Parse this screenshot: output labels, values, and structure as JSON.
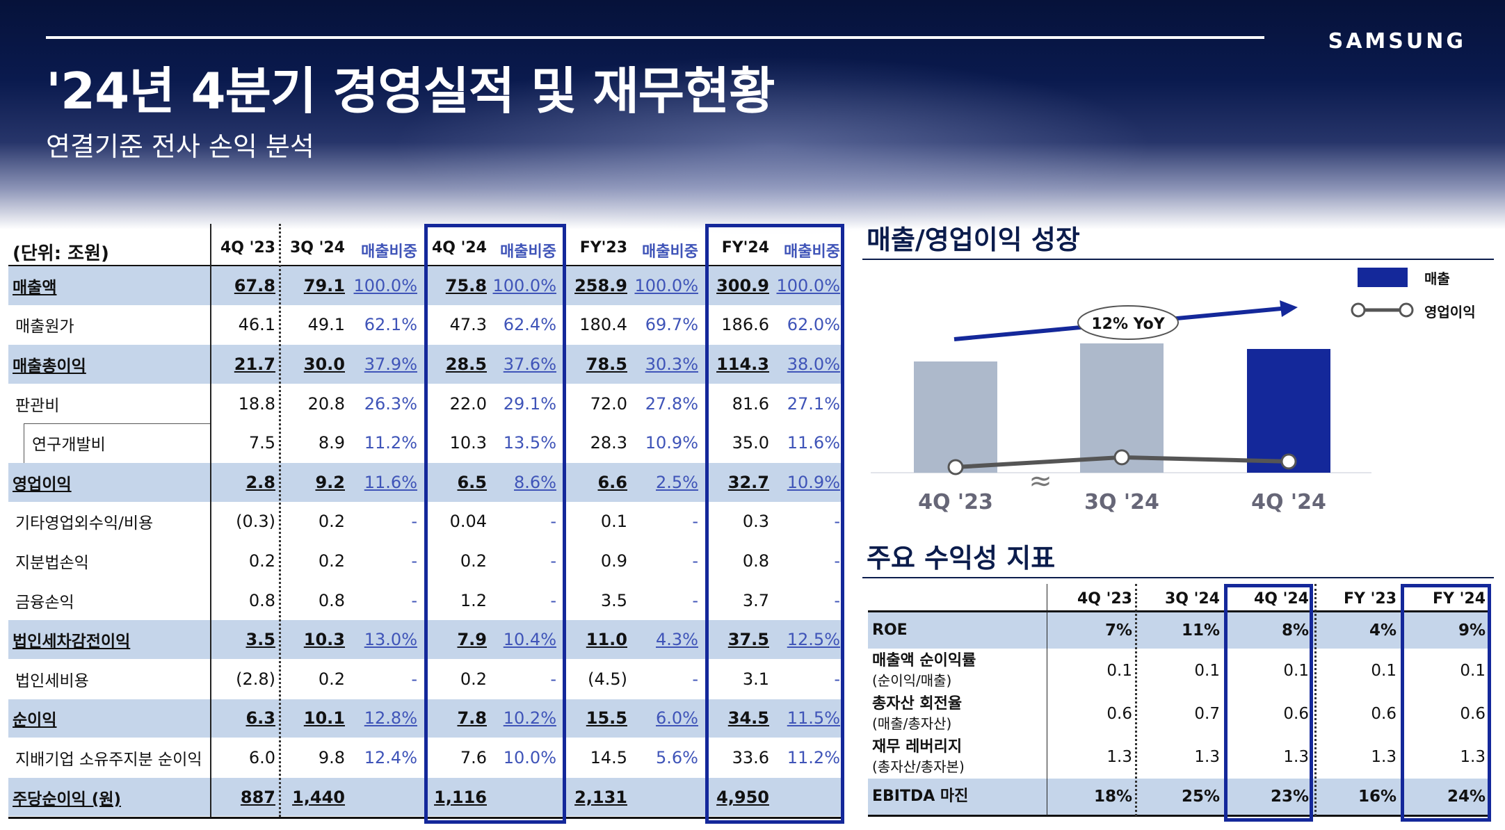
{
  "brand": "SAMSUNG",
  "title": "'24년 4분기 경영실적 및 재무현황",
  "subtitle": "연결기준 전사 손익 분석",
  "income_table": {
    "unit_label": "(단위: 조원)",
    "headers": [
      "4Q '23",
      "3Q '24",
      "매출비중",
      "4Q '24",
      "매출비중",
      "FY'23",
      "매출비중",
      "FY'24",
      "매출비중"
    ],
    "rows": [
      {
        "label": "매출액",
        "highlight": true,
        "values": [
          "67.8",
          "79.1",
          "100.0%",
          "75.8",
          "100.0%",
          "258.9",
          "100.0%",
          "300.9",
          "100.0%"
        ]
      },
      {
        "label": "매출원가",
        "highlight": false,
        "values": [
          "46.1",
          "49.1",
          "62.1%",
          "47.3",
          "62.4%",
          "180.4",
          "69.7%",
          "186.6",
          "62.0%"
        ]
      },
      {
        "label": "매출총이익",
        "highlight": true,
        "values": [
          "21.7",
          "30.0",
          "37.9%",
          "28.5",
          "37.6%",
          "78.5",
          "30.3%",
          "114.3",
          "38.0%"
        ]
      },
      {
        "label": "판관비",
        "highlight": false,
        "values": [
          "18.8",
          "20.8",
          "26.3%",
          "22.0",
          "29.1%",
          "72.0",
          "27.8%",
          "81.6",
          "27.1%"
        ]
      },
      {
        "label": "연구개발비",
        "highlight": false,
        "indent": true,
        "values": [
          "7.5",
          "8.9",
          "11.2%",
          "10.3",
          "13.5%",
          "28.3",
          "10.9%",
          "35.0",
          "11.6%"
        ]
      },
      {
        "label": "영업이익",
        "highlight": true,
        "values": [
          "2.8",
          "9.2",
          "11.6%",
          "6.5",
          "8.6%",
          "6.6",
          "2.5%",
          "32.7",
          "10.9%"
        ]
      },
      {
        "label": "기타영업외수익/비용",
        "highlight": false,
        "values": [
          "(0.3)",
          "0.2",
          "-",
          "0.04",
          "-",
          "0.1",
          "-",
          "0.3",
          "-"
        ]
      },
      {
        "label": "지분법손익",
        "highlight": false,
        "values": [
          "0.2",
          "0.2",
          "-",
          "0.2",
          "-",
          "0.9",
          "-",
          "0.8",
          "-"
        ]
      },
      {
        "label": "금융손익",
        "highlight": false,
        "values": [
          "0.8",
          "0.8",
          "-",
          "1.2",
          "-",
          "3.5",
          "-",
          "3.7",
          "-"
        ]
      },
      {
        "label": "법인세차감전이익",
        "highlight": true,
        "values": [
          "3.5",
          "10.3",
          "13.0%",
          "7.9",
          "10.4%",
          "11.0",
          "4.3%",
          "37.5",
          "12.5%"
        ]
      },
      {
        "label": "법인세비용",
        "highlight": false,
        "values": [
          "(2.8)",
          "0.2",
          "-",
          "0.2",
          "-",
          "(4.5)",
          "-",
          "3.1",
          "-"
        ]
      },
      {
        "label": "순이익",
        "highlight": true,
        "values": [
          "6.3",
          "10.1",
          "12.8%",
          "7.8",
          "10.2%",
          "15.5",
          "6.0%",
          "34.5",
          "11.5%"
        ]
      },
      {
        "label": "지배기업 소유주지분 순이익",
        "highlight": false,
        "values": [
          "6.0",
          "9.8",
          "12.4%",
          "7.6",
          "10.0%",
          "14.5",
          "5.6%",
          "33.6",
          "11.2%"
        ]
      },
      {
        "label": "주당순이익 (원)",
        "highlight": true,
        "values": [
          "887",
          "1,440",
          "",
          "1,116",
          "",
          "2,131",
          "",
          "4,950",
          ""
        ]
      }
    ]
  },
  "growth_chart": {
    "title": "매출/영업이익 성장",
    "legend_sales": "매출",
    "legend_op": "영업이익",
    "yoy_label": "12% YoY",
    "break_mark": "≈",
    "colors": {
      "bar_prev": "#adb9cb",
      "bar_curr": "#14289a",
      "line": "#555555",
      "arrow": "#14289a"
    },
    "chart_data": {
      "type": "bar",
      "categories": [
        "4Q '23",
        "3Q '24",
        "4Q '24"
      ],
      "series": [
        {
          "name": "매출",
          "values": [
            67.8,
            79.1,
            75.8
          ]
        },
        {
          "name": "영업이익",
          "values": [
            2.8,
            9.2,
            6.5
          ]
        }
      ]
    }
  },
  "ratio_table": {
    "title": "주요 수익성 지표",
    "headers": [
      "4Q '23",
      "3Q '24",
      "4Q '24",
      "FY '23",
      "FY '24"
    ],
    "rows": [
      {
        "label": "ROE",
        "sub": "",
        "highlight": true,
        "values": [
          "7%",
          "11%",
          "8%",
          "4%",
          "9%"
        ]
      },
      {
        "label": "매출액 순이익률",
        "sub": "(순이익/매출)",
        "highlight": false,
        "values": [
          "0.1",
          "0.1",
          "0.1",
          "0.1",
          "0.1"
        ]
      },
      {
        "label": "총자산 회전율",
        "sub": "(매출/총자산)",
        "highlight": false,
        "values": [
          "0.6",
          "0.7",
          "0.6",
          "0.6",
          "0.6"
        ]
      },
      {
        "label": "재무 레버리지",
        "sub": "(총자산/총자본)",
        "highlight": false,
        "values": [
          "1.3",
          "1.3",
          "1.3",
          "1.3",
          "1.3"
        ]
      },
      {
        "label": "EBITDA 마진",
        "sub": "",
        "highlight": true,
        "values": [
          "18%",
          "25%",
          "23%",
          "16%",
          "24%"
        ]
      }
    ]
  }
}
